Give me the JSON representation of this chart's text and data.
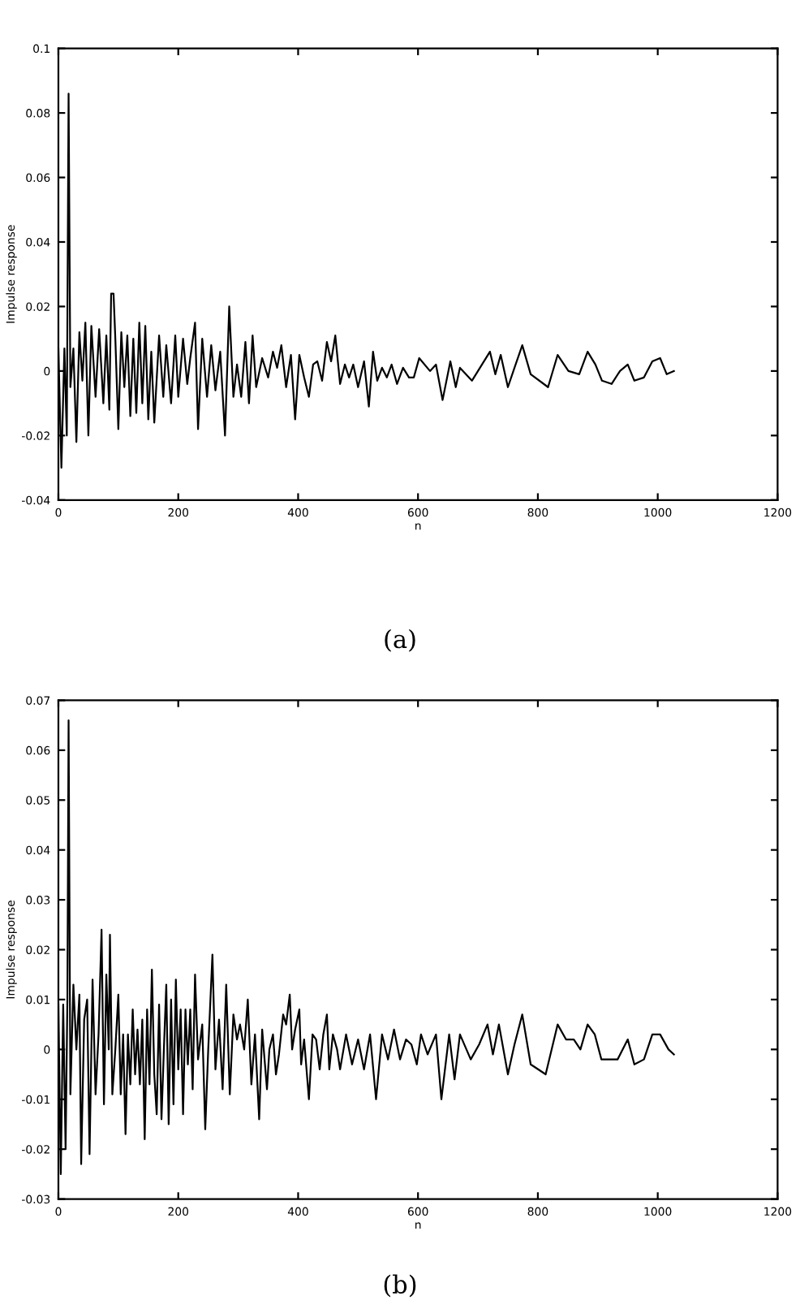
{
  "chart_data": [
    {
      "type": "line",
      "xlabel": "n",
      "ylabel": "Impulse response",
      "annotations": [
        "(a)"
      ],
      "xlim": [
        0,
        1200
      ],
      "xticks": [
        0,
        200,
        400,
        600,
        800,
        1000,
        1200
      ],
      "ylim": [
        -0.04,
        0.1
      ],
      "yticks": [
        -0.04,
        -0.02,
        0,
        0.02,
        0.04,
        0.06,
        0.08,
        0.1
      ],
      "grid": false,
      "legend": false,
      "line_style": "solid",
      "series": [
        {
          "color": "#000000",
          "x": [
            0,
            5,
            10,
            14,
            17,
            20,
            25,
            30,
            35,
            40,
            45,
            50,
            55,
            62,
            68,
            75,
            80,
            85,
            88,
            92,
            95,
            100,
            105,
            110,
            115,
            120,
            125,
            130,
            135,
            140,
            145,
            150,
            155,
            160,
            168,
            175,
            180,
            188,
            195,
            200,
            208,
            215,
            220,
            228,
            233,
            240,
            248,
            255,
            262,
            270,
            278,
            285,
            292,
            298,
            305,
            312,
            318,
            324,
            330,
            340,
            350,
            358,
            365,
            372,
            380,
            388,
            395,
            402,
            410,
            418,
            425,
            432,
            440,
            448,
            455,
            462,
            470,
            478,
            485,
            492,
            500,
            510,
            518,
            525,
            532,
            540,
            548,
            556,
            565,
            575,
            585,
            593,
            602,
            620,
            630,
            641,
            654,
            663,
            670,
            690,
            720,
            729,
            738,
            750,
            761,
            774,
            788,
            817,
            833,
            851,
            869,
            883,
            896,
            907,
            923,
            937,
            950,
            961,
            977,
            991,
            1004,
            1015,
            1027
          ],
          "values": [
            0.007,
            -0.03,
            0.007,
            -0.02,
            0.086,
            -0.005,
            0.007,
            -0.022,
            0.012,
            -0.003,
            0.015,
            -0.02,
            0.014,
            -0.008,
            0.013,
            -0.01,
            0.011,
            -0.012,
            0.024,
            0.024,
            0.01,
            -0.018,
            0.012,
            -0.005,
            0.011,
            -0.014,
            0.01,
            -0.013,
            0.015,
            -0.01,
            0.014,
            -0.015,
            0.006,
            -0.016,
            0.011,
            -0.008,
            0.008,
            -0.01,
            0.011,
            -0.008,
            0.01,
            -0.004,
            0.004,
            0.015,
            -0.018,
            0.01,
            -0.008,
            0.008,
            -0.006,
            0.006,
            -0.02,
            0.02,
            -0.008,
            0.002,
            -0.008,
            0.009,
            -0.01,
            0.011,
            -0.005,
            0.004,
            -0.002,
            0.006,
            0.001,
            0.008,
            -0.005,
            0.005,
            -0.015,
            0.005,
            -0.002,
            -0.008,
            0.002,
            0.003,
            -0.003,
            0.009,
            0.003,
            0.011,
            -0.004,
            0.002,
            -0.002,
            0.002,
            -0.005,
            0.003,
            -0.011,
            0.006,
            -0.003,
            0.001,
            -0.002,
            0.002,
            -0.004,
            0.001,
            -0.002,
            -0.002,
            0.004,
            0.0,
            0.002,
            -0.009,
            0.003,
            -0.005,
            0.001,
            -0.003,
            0.006,
            -0.001,
            0.005,
            -0.005,
            0.001,
            0.008,
            -0.001,
            -0.005,
            0.005,
            0.0,
            -0.001,
            0.006,
            0.002,
            -0.003,
            -0.004,
            0.0,
            0.002,
            -0.003,
            -0.002,
            0.003,
            0.004,
            -0.001,
            0.0
          ]
        }
      ]
    },
    {
      "type": "line",
      "xlabel": "n",
      "ylabel": "Impulse response",
      "annotations": [
        "(b)"
      ],
      "xlim": [
        0,
        1200
      ],
      "xticks": [
        0,
        200,
        400,
        600,
        800,
        1000,
        1200
      ],
      "ylim": [
        -0.03,
        0.07
      ],
      "yticks": [
        -0.03,
        -0.02,
        -0.01,
        0,
        0.01,
        0.02,
        0.03,
        0.04,
        0.05,
        0.06,
        0.07
      ],
      "grid": false,
      "legend": false,
      "line_style": "solid",
      "series": [
        {
          "color": "#000000",
          "x": [
            0,
            4,
            8,
            12,
            15,
            17,
            20,
            25,
            30,
            35,
            38,
            43,
            48,
            52,
            57,
            62,
            67,
            72,
            76,
            80,
            84,
            86,
            90,
            95,
            100,
            104,
            108,
            112,
            116,
            120,
            124,
            128,
            132,
            136,
            140,
            144,
            148,
            152,
            156,
            160,
            164,
            168,
            172,
            176,
            180,
            184,
            188,
            192,
            196,
            200,
            204,
            208,
            212,
            216,
            220,
            224,
            228,
            233,
            240,
            245,
            250,
            257,
            262,
            268,
            274,
            280,
            286,
            292,
            298,
            303,
            310,
            316,
            322,
            328,
            335,
            340,
            348,
            352,
            358,
            363,
            368,
            375,
            380,
            386,
            390,
            395,
            402,
            405,
            410,
            418,
            424,
            430,
            436,
            442,
            448,
            452,
            458,
            465,
            470,
            480,
            490,
            500,
            510,
            520,
            530,
            540,
            550,
            560,
            570,
            580,
            589,
            598,
            605,
            616,
            630,
            639,
            652,
            661,
            670,
            688,
            702,
            716,
            725,
            735,
            750,
            761,
            774,
            788,
            813,
            833,
            847,
            860,
            871,
            883,
            895,
            906,
            920,
            933,
            950,
            961,
            977,
            991,
            1004,
            1018,
            1027
          ],
          "values": [
            0.009,
            -0.025,
            0.009,
            -0.02,
            0.01,
            0.066,
            -0.009,
            0.013,
            0.0,
            0.011,
            -0.023,
            0.006,
            0.01,
            -0.021,
            0.014,
            -0.009,
            0.003,
            0.024,
            -0.011,
            0.015,
            0.0,
            0.023,
            -0.009,
            0.0,
            0.011,
            -0.009,
            0.003,
            -0.017,
            0.003,
            -0.007,
            0.008,
            -0.005,
            0.004,
            -0.007,
            0.006,
            -0.018,
            0.008,
            -0.007,
            0.016,
            -0.005,
            -0.013,
            0.009,
            -0.014,
            0.0,
            0.013,
            -0.015,
            0.01,
            -0.011,
            0.014,
            -0.004,
            0.008,
            -0.013,
            0.008,
            -0.003,
            0.008,
            -0.008,
            0.015,
            -0.002,
            0.005,
            -0.016,
            0.0,
            0.019,
            -0.004,
            0.006,
            -0.008,
            0.013,
            -0.009,
            0.007,
            0.002,
            0.005,
            0.0,
            0.01,
            -0.007,
            0.003,
            -0.014,
            0.004,
            -0.008,
            0.0,
            0.003,
            -0.005,
            -0.001,
            0.007,
            0.005,
            0.011,
            0.0,
            0.004,
            0.008,
            -0.003,
            0.002,
            -0.01,
            0.003,
            0.002,
            -0.004,
            0.003,
            0.007,
            -0.004,
            0.003,
            0.0,
            -0.004,
            0.003,
            -0.003,
            0.002,
            -0.004,
            0.003,
            -0.01,
            0.003,
            -0.002,
            0.004,
            -0.002,
            0.002,
            0.001,
            -0.003,
            0.003,
            -0.001,
            0.003,
            -0.01,
            0.003,
            -0.006,
            0.003,
            -0.002,
            0.001,
            0.005,
            -0.001,
            0.005,
            -0.005,
            0.001,
            0.007,
            -0.003,
            -0.005,
            0.005,
            0.002,
            0.002,
            0.0,
            0.005,
            0.003,
            -0.002,
            -0.002,
            -0.002,
            0.002,
            -0.003,
            -0.002,
            0.003,
            0.003,
            0.0,
            -0.001
          ]
        }
      ]
    }
  ]
}
